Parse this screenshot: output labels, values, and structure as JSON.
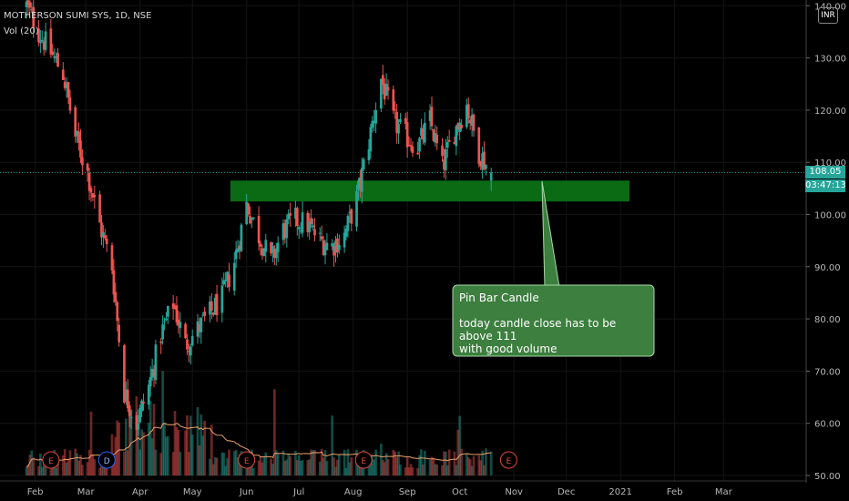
{
  "header": {
    "symbol": "MOTHERSON SUMI SYS, 1D, NSE",
    "volume_indicator": "Vol (20)",
    "currency": "INR"
  },
  "price_scale": {
    "last_price": "108.05",
    "countdown": "03:47:13"
  },
  "annotation": {
    "title": "Pin Bar Candle",
    "line1": "today candle close has to be above 111",
    "line2": "with good volume"
  },
  "colors": {
    "up": "#26a69a",
    "down": "#ef5350",
    "zone": "#0b6b15",
    "callout": "#3c7f3e",
    "volume_ma": "#e9a06b",
    "last_price": "#26a69a"
  },
  "chart_data": {
    "type": "candlestick",
    "ylim": [
      50,
      140
    ],
    "yticks": [
      "140.00",
      "130.00",
      "120.00",
      "110.00",
      "100.00",
      "90.00",
      "80.00",
      "70.00",
      "60.00",
      "50.00"
    ],
    "xticks": [
      "Feb",
      "Mar",
      "Apr",
      "May",
      "Jun",
      "Jul",
      "Aug",
      "Sep",
      "Oct",
      "Nov",
      "Dec",
      "2021",
      "Feb",
      "Mar"
    ],
    "support_zone": [
      102.5,
      106.5
    ],
    "last_price": 108.05,
    "price_path": [
      [
        "2020-01-27",
        140
      ],
      [
        "2020-02-03",
        135
      ],
      [
        "2020-02-10",
        131
      ],
      [
        "2020-02-17",
        127
      ],
      [
        "2020-02-24",
        115
      ],
      [
        "2020-03-02",
        108
      ],
      [
        "2020-03-09",
        98
      ],
      [
        "2020-03-16",
        90
      ],
      [
        "2020-03-23",
        66
      ],
      [
        "2020-03-30",
        60
      ],
      [
        "2020-04-06",
        67
      ],
      [
        "2020-04-13",
        77
      ],
      [
        "2020-04-20",
        83
      ],
      [
        "2020-04-27",
        75
      ],
      [
        "2020-05-04",
        78
      ],
      [
        "2020-05-11",
        81
      ],
      [
        "2020-05-18",
        84
      ],
      [
        "2020-05-25",
        91
      ],
      [
        "2020-06-01",
        102
      ],
      [
        "2020-06-08",
        96
      ],
      [
        "2020-06-15",
        91
      ],
      [
        "2020-06-22",
        97
      ],
      [
        "2020-06-29",
        99
      ],
      [
        "2020-07-06",
        98
      ],
      [
        "2020-07-13",
        95
      ],
      [
        "2020-07-20",
        94
      ],
      [
        "2020-07-27",
        96
      ],
      [
        "2020-08-03",
        103
      ],
      [
        "2020-08-10",
        114
      ],
      [
        "2020-08-17",
        126
      ],
      [
        "2020-08-24",
        118
      ],
      [
        "2020-08-31",
        115
      ],
      [
        "2020-09-07",
        113
      ],
      [
        "2020-09-14",
        118
      ],
      [
        "2020-09-21",
        109
      ],
      [
        "2020-09-28",
        116
      ],
      [
        "2020-10-05",
        121
      ],
      [
        "2020-10-12",
        112
      ],
      [
        "2020-10-19",
        108
      ]
    ],
    "events": [
      {
        "date": "2020-02-10",
        "label": "E"
      },
      {
        "date": "2020-03-13",
        "label": "D"
      },
      {
        "date": "2020-06-01",
        "label": "E"
      },
      {
        "date": "2020-08-07",
        "label": "E"
      },
      {
        "date": "2020-10-29",
        "label": "E"
      }
    ]
  }
}
